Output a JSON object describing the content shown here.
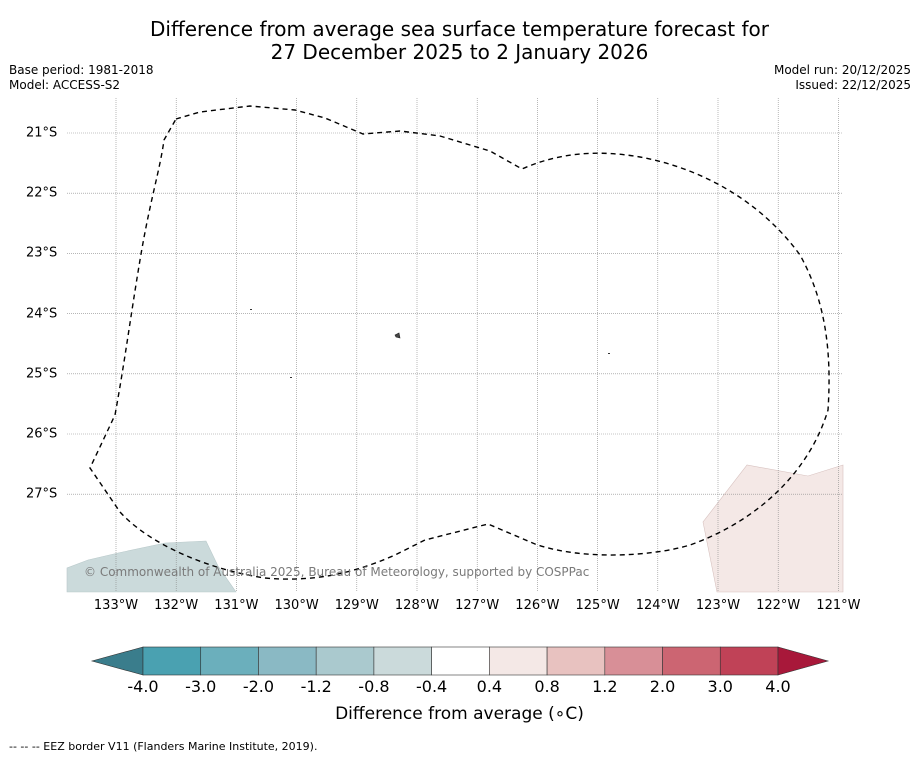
{
  "title_line1": "Difference from average sea surface temperature forecast for",
  "title_line2": "27 December 2025 to 2 January 2026",
  "meta": {
    "base_period": "Base period: 1981-2018",
    "model": "Model: ACCESS-S2",
    "model_run": "Model run: 20/12/2025",
    "issued": "Issued: 22/12/2025"
  },
  "latitudes": [
    "21°S",
    "22°S",
    "23°S",
    "24°S",
    "25°S",
    "26°S",
    "27°S"
  ],
  "longitudes": [
    "133°W",
    "132°W",
    "131°W",
    "130°W",
    "129°W",
    "128°W",
    "127°W",
    "126°W",
    "125°W",
    "124°W",
    "123°W",
    "122°W",
    "121°W"
  ],
  "colorbar": {
    "ticks": [
      "-4.0",
      "-3.0",
      "-2.0",
      "-1.2",
      "-0.8",
      "-0.4",
      "0.4",
      "0.8",
      "1.2",
      "2.0",
      "3.0",
      "4.0"
    ],
    "colors": [
      "#4aa1b1",
      "#6bafbc",
      "#8ab9c4",
      "#aac9ce",
      "#cbdadb",
      "#ffffff",
      "#f4e8e6",
      "#e8c2c0",
      "#d88f97",
      "#cc6572",
      "#c04257"
    ],
    "under_color": "#3a7d8c",
    "over_color": "#a8183a",
    "label": "Difference from average (∘C)"
  },
  "copyright": "© Commonwealth of Australia 2025, Bureau of Meteorology, supported by COSPPac",
  "eez_note": "--  --  -- EEZ border V11 (Flanders Marine Institute, 2019)."
}
